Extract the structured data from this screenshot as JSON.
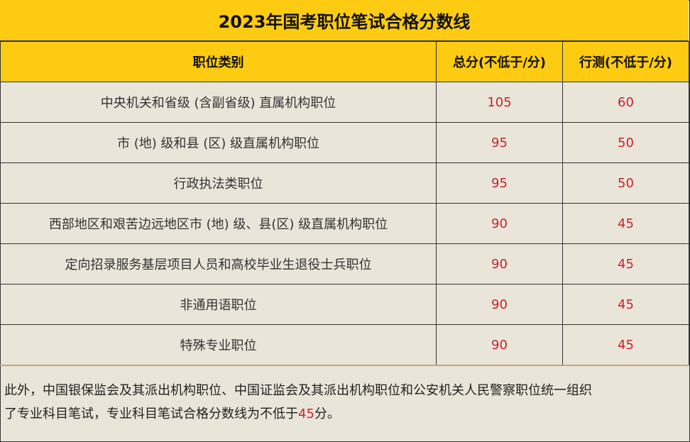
{
  "title": "2023年国考职位笔试合格分数线",
  "columns": [
    "职位类别",
    "总分(不低于/分)",
    "行测(不低于/分)"
  ],
  "rows": [
    {
      "category": "中央机关和省级 (含副省级) 直属机构职位",
      "total": "105",
      "xingce": "60"
    },
    {
      "category": "市 (地) 级和县 (区) 级直属机构职位",
      "total": "95",
      "xingce": "50"
    },
    {
      "category": "行政执法类职位",
      "total": "95",
      "xingce": "50"
    },
    {
      "category": "西部地区和艰苦边远地区市 (地) 级、县(区) 级直属机构职位",
      "total": "90",
      "xingce": "45"
    },
    {
      "category": "定向招录服务基层项目人员和高校毕业生退役士兵职位",
      "total": "90",
      "xingce": "45"
    },
    {
      "category": "非通用语职位",
      "total": "90",
      "xingce": "45"
    },
    {
      "category": "特殊专业职位",
      "total": "90",
      "xingce": "45"
    }
  ],
  "note": {
    "line1": "此外，中国银保监会及其派出机构职位、中国证监会及其派出机构职位和公安机关人民警察职位统一组织",
    "line2_prefix": "了专业科目笔试，专业科目笔试合格分数线为不低于",
    "line2_value": "45",
    "line2_suffix": "分。"
  },
  "colors": {
    "header": "#fdcb12",
    "background": "#e9e5d9",
    "score": "#c8232c"
  }
}
